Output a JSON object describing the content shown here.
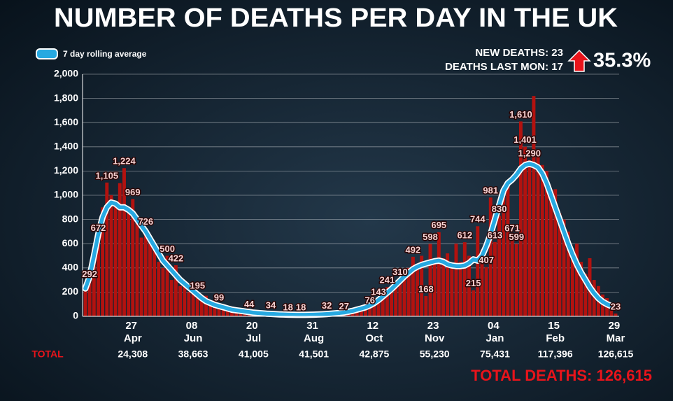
{
  "chart_data": {
    "type": "bar",
    "title": "NUMBER OF DEATHS PER DAY IN THE UK",
    "info": {
      "new_deaths": "NEW DEATHS: 23",
      "last_mon": "DEATHS LAST MON: 17",
      "change": "35.3%",
      "total_deaths": "TOTAL DEATHS: 126,615"
    },
    "categories": [
      null,
      null,
      null,
      null,
      null,
      null,
      null,
      null,
      null,
      null,
      null,
      "27 Apr",
      null,
      null,
      null,
      null,
      null,
      null,
      null,
      null,
      null,
      null,
      null,
      null,
      null,
      "08 Jun",
      null,
      null,
      null,
      null,
      null,
      null,
      null,
      null,
      null,
      null,
      null,
      null,
      null,
      "20 Jul",
      null,
      null,
      null,
      null,
      null,
      null,
      null,
      null,
      null,
      null,
      null,
      null,
      null,
      "31 Aug",
      null,
      null,
      null,
      null,
      null,
      null,
      null,
      null,
      null,
      null,
      null,
      null,
      null,
      "12 Oct",
      null,
      null,
      null,
      null,
      null,
      null,
      null,
      null,
      null,
      null,
      null,
      null,
      null,
      "23 Nov",
      null,
      null,
      null,
      null,
      null,
      null,
      null,
      null,
      null,
      null,
      null,
      null,
      null,
      "04 Jan",
      null,
      null,
      null,
      null,
      null,
      null,
      null,
      null,
      null,
      null,
      null,
      null,
      null,
      "15 Feb",
      null,
      null,
      null,
      null,
      null,
      null,
      null,
      null,
      null,
      null,
      null,
      null,
      null,
      "29 Mar"
    ],
    "series": [
      {
        "type": "bar",
        "color": "#b3120f",
        "values": [
          230,
          292,
          500,
          672,
          900,
          1105,
          1000,
          950,
          1100,
          1224,
          850,
          969,
          800,
          650,
          726,
          600,
          550,
          450,
          400,
          500,
          300,
          422,
          250,
          280,
          200,
          230,
          195,
          150,
          170,
          120,
          130,
          99,
          90,
          70,
          80,
          60,
          50,
          55,
          44,
          40,
          30,
          35,
          25,
          34,
          20,
          15,
          22,
          18,
          12,
          15,
          18,
          10,
          14,
          12,
          20,
          15,
          32,
          20,
          25,
          30,
          27,
          40,
          50,
          60,
          70,
          65,
          76,
          100,
          143,
          180,
          241,
          200,
          280,
          310,
          350,
          400,
          492,
          420,
          500,
          168,
          598,
          450,
          695,
          480,
          520,
          400,
          600,
          450,
          612,
          500,
          215,
          744,
          550,
          407,
          981,
          613,
          830,
          1000,
          1100,
          671,
          599,
          1610,
          1401,
          1290,
          1820,
          1350,
          1250,
          1200,
          1000,
          1050,
          850,
          800,
          700,
          550,
          600,
          450,
          350,
          480,
          300,
          250,
          180,
          150,
          100,
          23
        ],
        "value_labels": [
          null,
          "292",
          null,
          "672",
          null,
          "1,105",
          null,
          null,
          null,
          "1,224",
          null,
          "969",
          null,
          null,
          "726",
          null,
          null,
          null,
          null,
          "500",
          null,
          "422",
          null,
          null,
          null,
          null,
          "195",
          null,
          null,
          null,
          null,
          "99",
          null,
          null,
          null,
          null,
          null,
          null,
          "44",
          null,
          null,
          null,
          null,
          "34",
          null,
          null,
          null,
          "18",
          null,
          null,
          "18",
          null,
          null,
          null,
          null,
          null,
          "32",
          null,
          null,
          null,
          "27",
          null,
          null,
          null,
          null,
          null,
          "76",
          null,
          "143",
          null,
          "241",
          null,
          null,
          "310",
          null,
          null,
          "492",
          null,
          null,
          "168",
          "598",
          null,
          "695",
          null,
          null,
          null,
          null,
          null,
          "612",
          null,
          "215",
          "744",
          null,
          "407",
          "981",
          "613",
          "830",
          null,
          null,
          "671",
          "599",
          "1,610",
          "1,401",
          "1,290",
          null,
          null,
          null,
          null,
          null,
          null,
          null,
          null,
          null,
          null,
          null,
          null,
          null,
          null,
          null,
          null,
          null,
          null,
          null,
          "23"
        ]
      },
      {
        "type": "line",
        "name": "7 day rolling average",
        "color": "#27a9e1",
        "values": [
          230,
          330,
          500,
          680,
          820,
          900,
          940,
          930,
          900,
          900,
          880,
          850,
          800,
          750,
          700,
          640,
          580,
          520,
          460,
          420,
          380,
          340,
          300,
          270,
          240,
          210,
          180,
          150,
          125,
          110,
          95,
          85,
          75,
          65,
          55,
          50,
          45,
          40,
          35,
          30,
          28,
          25,
          22,
          20,
          18,
          16,
          15,
          14,
          13,
          12,
          12,
          12,
          13,
          14,
          15,
          17,
          19,
          22,
          25,
          28,
          32,
          38,
          45,
          55,
          65,
          75,
          90,
          110,
          135,
          165,
          195,
          225,
          260,
          295,
          330,
          360,
          390,
          410,
          425,
          435,
          445,
          455,
          460,
          450,
          430,
          420,
          415,
          415,
          420,
          440,
          470,
          460,
          500,
          580,
          680,
          800,
          920,
          1040,
          1100,
          1130,
          1170,
          1220,
          1250,
          1260,
          1250,
          1230,
          1180,
          1100,
          1000,
          900,
          800,
          700,
          600,
          510,
          430,
          360,
          300,
          240,
          190,
          150,
          120,
          100,
          85,
          75
        ]
      }
    ],
    "ylim": [
      0,
      2000
    ],
    "yticks": [
      0,
      200,
      400,
      600,
      800,
      {
        "value": 1000,
        "label": "1,000"
      },
      {
        "value": 1200,
        "label": "1,200"
      },
      {
        "value": 1400,
        "label": "1,400"
      },
      {
        "value": 1600,
        "label": "1,600"
      },
      {
        "value": 1800,
        "label": "1,800"
      },
      {
        "value": 2000,
        "label": "2,000"
      }
    ],
    "grid": true,
    "totals": {
      "label": "TOTAL",
      "labels": [
        "24,308",
        "38,663",
        "41,005",
        "41,501",
        "42,875",
        "55,230",
        "75,431",
        "117,396",
        "126,615"
      ]
    }
  }
}
